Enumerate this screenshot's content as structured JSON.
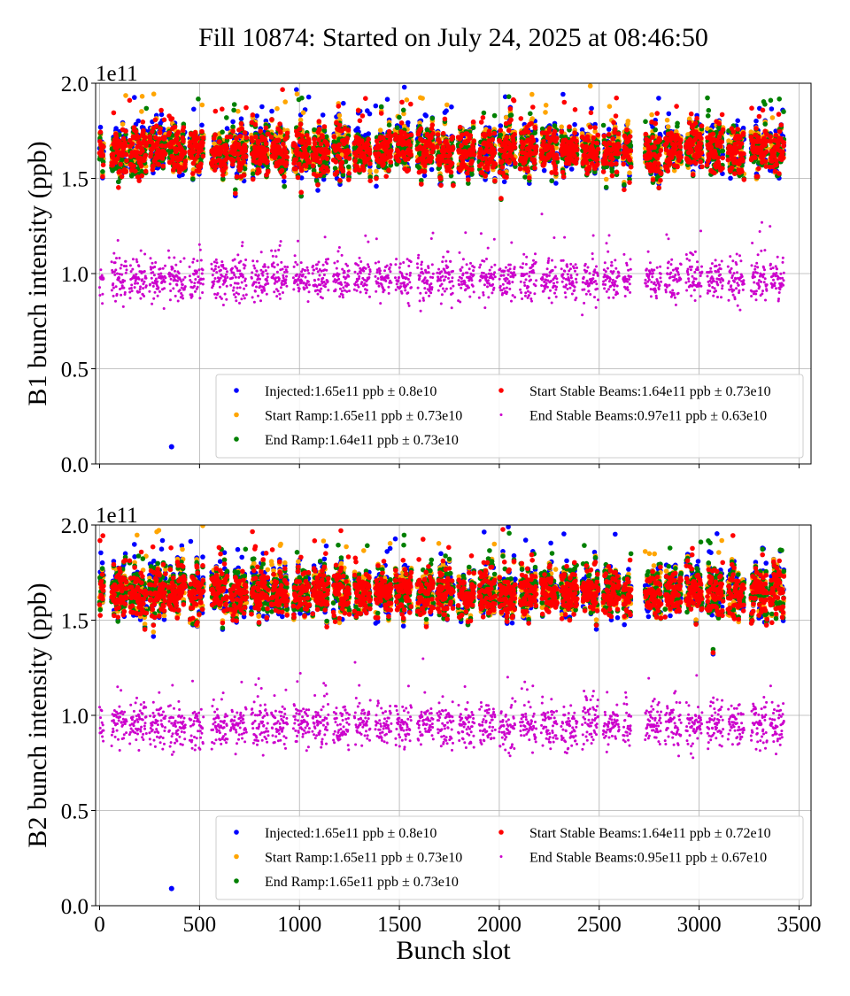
{
  "chart_data": {
    "title": "Fill 10874: Started on July 24, 2025 at 08:46:50",
    "xlabel": "Bunch slot",
    "x_ticks": [
      "0",
      "500",
      "1000",
      "1500",
      "2000",
      "2500",
      "3000",
      "3500"
    ],
    "x_tick_values": [
      0,
      500,
      1000,
      1500,
      2000,
      2500,
      3000,
      3500
    ],
    "xlim": [
      -20,
      3560
    ],
    "filled_slot_ranges": [
      [
        0,
        20
      ],
      [
        60,
        135
      ],
      [
        150,
        235
      ],
      [
        250,
        330
      ],
      [
        345,
        430
      ],
      [
        450,
        520
      ],
      [
        560,
        640
      ],
      [
        655,
        735
      ],
      [
        760,
        845
      ],
      [
        860,
        940
      ],
      [
        970,
        1050
      ],
      [
        1065,
        1145
      ],
      [
        1170,
        1250
      ],
      [
        1275,
        1355
      ],
      [
        1380,
        1460
      ],
      [
        1480,
        1560
      ],
      [
        1590,
        1670
      ],
      [
        1690,
        1770
      ],
      [
        1795,
        1875
      ],
      [
        1900,
        1980
      ],
      [
        2000,
        2080
      ],
      [
        2105,
        2185
      ],
      [
        2210,
        2290
      ],
      [
        2310,
        2390
      ],
      [
        2415,
        2495
      ],
      [
        2520,
        2600
      ],
      [
        2620,
        2660
      ],
      [
        2730,
        2810
      ],
      [
        2830,
        2910
      ],
      [
        2935,
        3015
      ],
      [
        3040,
        3120
      ],
      [
        3145,
        3225
      ],
      [
        3260,
        3340
      ],
      [
        3355,
        3425
      ]
    ],
    "panels": [
      {
        "type": "scatter",
        "ylabel": "B1 bunch intensity (ppb)",
        "y_offset_label": "1e11",
        "ylim": [
          0,
          2.0
        ],
        "y_ticks": [
          "0.0",
          "0.5",
          "1.0",
          "1.5",
          "2.0"
        ],
        "y_tick_values": [
          0,
          0.5,
          1.0,
          1.5,
          2.0
        ],
        "grid": true,
        "legend_placement": "lower-right",
        "series": [
          {
            "name": "Injected:1.65e11 ppb ± 0.8e10",
            "mean": 1.65,
            "std": 0.08,
            "color": "#0000ff",
            "outliers": [
              [
                360,
                0.09
              ]
            ]
          },
          {
            "name": "Start Ramp:1.65e11 ppb ± 0.73e10",
            "mean": 1.65,
            "std": 0.073,
            "color": "#ffa500"
          },
          {
            "name": "End Ramp:1.64e11 ppb ± 0.73e10",
            "mean": 1.64,
            "std": 0.073,
            "color": "#008000"
          },
          {
            "name": "Start Stable Beams:1.64e11 ppb ± 0.73e10",
            "mean": 1.64,
            "std": 0.073,
            "color": "#ff0000"
          },
          {
            "name": "End Stable Beams:0.97e11 ppb ± 0.63e10",
            "mean": 0.97,
            "std": 0.063,
            "color": "#cc00cc"
          }
        ]
      },
      {
        "type": "scatter",
        "ylabel": "B2 bunch intensity (ppb)",
        "y_offset_label": "1e11",
        "ylim": [
          0,
          2.0
        ],
        "y_ticks": [
          "0.0",
          "0.5",
          "1.0",
          "1.5",
          "2.0"
        ],
        "y_tick_values": [
          0,
          0.5,
          1.0,
          1.5,
          2.0
        ],
        "grid": true,
        "legend_placement": "lower-right",
        "series": [
          {
            "name": "Injected:1.65e11 ppb ± 0.8e10",
            "mean": 1.65,
            "std": 0.08,
            "color": "#0000ff",
            "outliers": [
              [
                360,
                0.09
              ]
            ]
          },
          {
            "name": "Start Ramp:1.65e11 ppb ± 0.73e10",
            "mean": 1.65,
            "std": 0.073,
            "color": "#ffa500"
          },
          {
            "name": "End Ramp:1.65e11 ppb ± 0.73e10",
            "mean": 1.65,
            "std": 0.073,
            "color": "#008000"
          },
          {
            "name": "Start Stable Beams:1.64e11 ppb ± 0.72e10",
            "mean": 1.64,
            "std": 0.072,
            "color": "#ff0000"
          },
          {
            "name": "End Stable Beams:0.95e11 ppb ± 0.67e10",
            "mean": 0.95,
            "std": 0.067,
            "color": "#cc00cc"
          }
        ]
      }
    ]
  }
}
